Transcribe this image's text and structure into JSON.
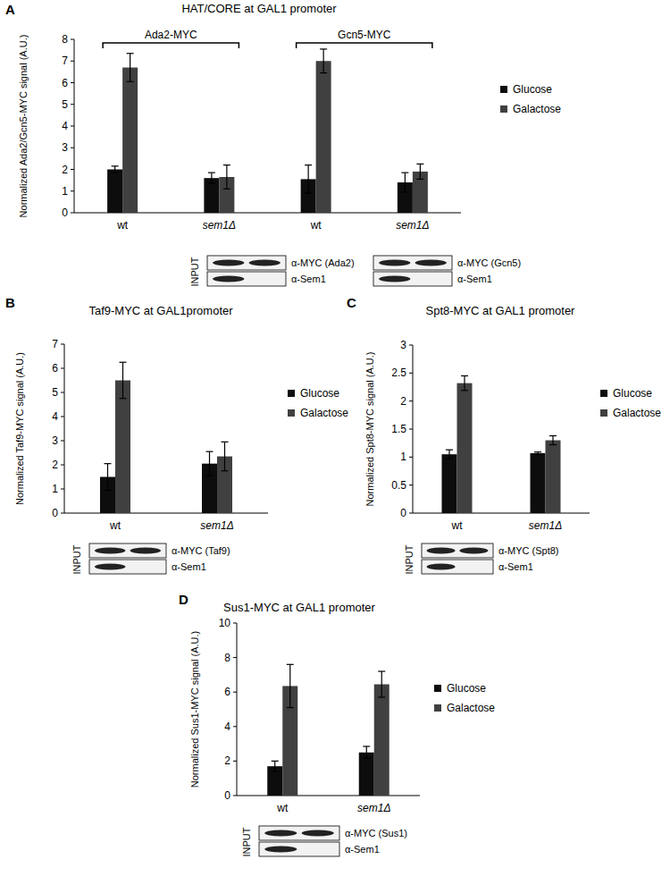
{
  "chart_data": [
    {
      "type": "bar",
      "panel": "A",
      "title": "HAT/CORE at GAL1 promoter",
      "y_label": "Normalized Ada2/Gcn5-MYC signal (A.U.)",
      "categories": [
        "wt",
        "sem1Δ",
        "wt",
        "sem1Δ"
      ],
      "groups": [
        "Ada2-MYC",
        "Gcn5-MYC"
      ],
      "series": [
        {
          "name": "Glucose",
          "color": "#0d0d0d",
          "values": [
            2.0,
            1.6,
            1.55,
            1.4
          ],
          "errors": [
            0.15,
            0.25,
            0.65,
            0.45
          ]
        },
        {
          "name": "Galactose",
          "color": "#404040",
          "values": [
            6.7,
            1.65,
            7.0,
            1.9
          ],
          "errors": [
            0.65,
            0.55,
            0.55,
            0.35
          ]
        }
      ],
      "ylim": [
        0,
        8
      ],
      "yticks": [
        0,
        1,
        2,
        3,
        4,
        5,
        6,
        7,
        8
      ],
      "grid": false,
      "legend": "right",
      "input_blots": [
        {
          "label": "INPUT",
          "rows": [
            "α-MYC (Ada2)",
            "α-Sem1"
          ]
        },
        {
          "rows": [
            "α-MYC (Gcn5)",
            "α-Sem1"
          ]
        }
      ]
    },
    {
      "type": "bar",
      "panel": "B",
      "title": "Taf9-MYC at GAL1promoter",
      "y_label": "Normalized Taf9-MYC signal (A.U.)",
      "categories": [
        "wt",
        "sem1Δ"
      ],
      "series": [
        {
          "name": "Glucose",
          "color": "#0d0d0d",
          "values": [
            1.5,
            2.05
          ],
          "errors": [
            0.55,
            0.5
          ]
        },
        {
          "name": "Galactose",
          "color": "#404040",
          "values": [
            5.5,
            2.35
          ],
          "errors": [
            0.75,
            0.6
          ]
        }
      ],
      "ylim": [
        0,
        7
      ],
      "yticks": [
        0,
        1,
        2,
        3,
        4,
        5,
        6,
        7
      ],
      "grid": false,
      "legend": "right",
      "input_blots": [
        {
          "label": "INPUT",
          "rows": [
            "α-MYC (Taf9)",
            "α-Sem1"
          ]
        }
      ]
    },
    {
      "type": "bar",
      "panel": "C",
      "title": "Spt8-MYC at GAL1 promoter",
      "y_label": "Normalized Spt8-MYC signal (A.U.)",
      "categories": [
        "wt",
        "sem1Δ"
      ],
      "series": [
        {
          "name": "Glucose",
          "color": "#0d0d0d",
          "values": [
            1.05,
            1.07
          ],
          "errors": [
            0.08,
            0.02
          ]
        },
        {
          "name": "Galactose",
          "color": "#404040",
          "values": [
            2.32,
            1.3
          ],
          "errors": [
            0.13,
            0.08
          ]
        }
      ],
      "ylim": [
        0,
        3
      ],
      "yticks": [
        0,
        0.5,
        1,
        1.5,
        2,
        2.5,
        3
      ],
      "grid": false,
      "legend": "right",
      "input_blots": [
        {
          "label": "INPUT",
          "rows": [
            "α-MYC (Spt8)",
            "α-Sem1"
          ]
        }
      ]
    },
    {
      "type": "bar",
      "panel": "D",
      "title": "Sus1-MYC at GAL1 promoter",
      "y_label": "Normalized Sus1-MYC signal (A.U.)",
      "categories": [
        "wt",
        "sem1Δ"
      ],
      "series": [
        {
          "name": "Glucose",
          "color": "#0d0d0d",
          "values": [
            1.7,
            2.5
          ],
          "errors": [
            0.3,
            0.35
          ]
        },
        {
          "name": "Galactose",
          "color": "#404040",
          "values": [
            6.35,
            6.45
          ],
          "errors": [
            1.25,
            0.75
          ]
        }
      ],
      "ylim": [
        0,
        10
      ],
      "yticks": [
        0,
        2,
        4,
        6,
        8,
        10
      ],
      "grid": false,
      "legend": "right",
      "input_blots": [
        {
          "label": "INPUT",
          "rows": [
            "α-MYC (Sus1)",
            "α-Sem1"
          ]
        }
      ]
    }
  ]
}
